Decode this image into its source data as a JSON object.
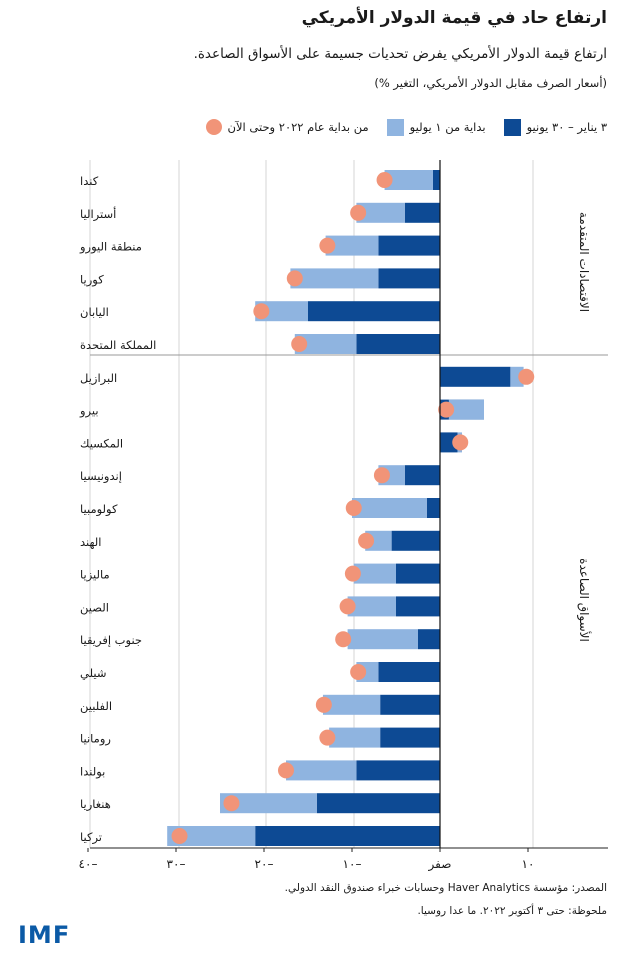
{
  "title": "ارتفاع حاد في قيمة الدولار الأمريكي",
  "subtitle": "ارتفاع قيمة الدولار الأمريكي يفرض تحديات جسيمة على الأسواق الصاعدة.",
  "units": "(أسعار الصرف مقابل الدولار الأمريكي، التغير %)",
  "legend": {
    "jan_jun": "٣ يناير – ٣٠ يونيو",
    "since_jul": "بداية من ١ يوليو",
    "ytd": "من بداية عام ٢٠٢٢ وحتى الآن"
  },
  "colors": {
    "jan_jun": "#0d4a94",
    "since_jul": "#8fb4e0",
    "ytd": "#f19478"
  },
  "groups": {
    "advanced": "الاقتصادات المتقدمة",
    "emerging": "الأسواق الصاعدة"
  },
  "source": "المصدر: مؤسسة Haver Analytics وحسابات خبراء صندوق النقد الدولي.",
  "note": "ملحوظة: حتى ٣ أكتوبر ٢٠٢٢. ما عدا روسيا.",
  "logo": "IMF",
  "chart_data": {
    "type": "bar",
    "orientation": "horizontal",
    "stacked": true,
    "xlim": [
      -40,
      15
    ],
    "xticks": [
      -40,
      -30,
      -20,
      -10,
      0,
      10
    ],
    "xtick_labels": [
      "٤٠–",
      "٣٠–",
      "٢٠–",
      "١٠–",
      "صفر",
      "١٠"
    ],
    "grid": true,
    "categories": [
      "كندا",
      "أستراليا",
      "منطقة اليورو",
      "كوريا",
      "اليابان",
      "المملكة المتحدة",
      "البرازيل",
      "بيرو",
      "المكسيك",
      "إندونيسيا",
      "كولومبيا",
      "الهند",
      "ماليزيا",
      "الصين",
      "جنوب إفريقيا",
      "شيلي",
      "الفلبين",
      "رومانيا",
      "بولندا",
      "هنغاريا",
      "تركيا"
    ],
    "group_membership": [
      "advanced",
      "advanced",
      "advanced",
      "advanced",
      "advanced",
      "advanced",
      "emerging",
      "emerging",
      "emerging",
      "emerging",
      "emerging",
      "emerging",
      "emerging",
      "emerging",
      "emerging",
      "emerging",
      "emerging",
      "emerging",
      "emerging",
      "emerging",
      "emerging"
    ],
    "series": [
      {
        "name": "٣ يناير – ٣٠ يونيو",
        "type": "bar",
        "values": [
          -0.8,
          -4,
          -7,
          -7,
          -15,
          -9.5,
          8,
          5,
          2,
          -4,
          -1.5,
          -5.5,
          -5,
          -5,
          -2.5,
          -7,
          -6.8,
          -6.8,
          -9.5,
          -14,
          -21
        ]
      },
      {
        "name": "بداية من ١ يوليو",
        "type": "bar",
        "values": [
          -5.5,
          -5.5,
          -6,
          -10,
          -6,
          -7,
          1.5,
          -4,
          0.5,
          -3,
          -8.5,
          -3,
          -4.8,
          -5.5,
          -8,
          -2.5,
          -6.5,
          -5.8,
          -8,
          -11,
          -10
        ]
      },
      {
        "name": "من بداية عام ٢٠٢٢ وحتى الآن",
        "type": "dot",
        "values": [
          -6.3,
          -9.3,
          -12.8,
          -16.5,
          -20.3,
          -16,
          9.8,
          0.7,
          2.3,
          -6.6,
          -9.8,
          -8.4,
          -9.9,
          -10.5,
          -11,
          -9.3,
          -13.2,
          -12.8,
          -17.5,
          -23.7,
          -29.6
        ]
      }
    ]
  }
}
